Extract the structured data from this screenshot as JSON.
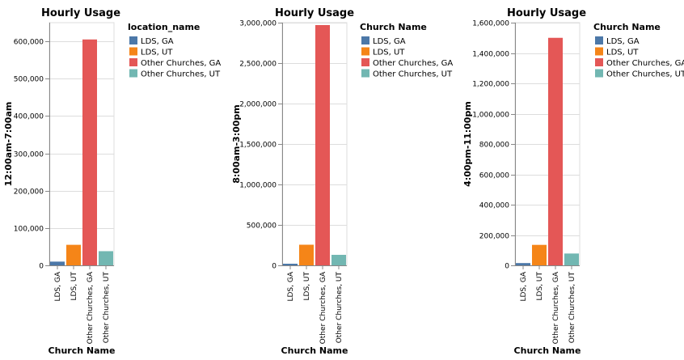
{
  "chart_data": [
    {
      "type": "bar",
      "title": "Hourly Usage",
      "xlabel": "Church Name",
      "ylabel": "12:00am-7:00am",
      "categories": [
        "LDS, GA",
        "LDS, UT",
        "Other Churches, GA",
        "Other Churches, UT"
      ],
      "values": [
        10000,
        55000,
        605000,
        38000
      ],
      "ylim": [
        0,
        650000
      ],
      "yticks": [
        0,
        100000,
        200000,
        300000,
        400000,
        500000,
        600000
      ],
      "ytick_labels": [
        "0",
        "100,000",
        "200,000",
        "300,000",
        "400,000",
        "500,000",
        "600,000"
      ],
      "legend_title": "location_name",
      "legend_placement": "right",
      "grid": true
    },
    {
      "type": "bar",
      "title": "Hourly Usage",
      "xlabel": "Church Name",
      "ylabel": "8:00am-3:00pm",
      "categories": [
        "LDS, GA",
        "LDS, UT",
        "Other Churches, GA",
        "Other Churches, UT"
      ],
      "values": [
        20000,
        255000,
        2970000,
        130000
      ],
      "ylim": [
        0,
        3000000
      ],
      "yticks": [
        0,
        500000,
        1000000,
        1500000,
        2000000,
        2500000,
        3000000
      ],
      "ytick_labels": [
        "0",
        "500,000",
        "1,000,000",
        "1,500,000",
        "2,000,000",
        "2,500,000",
        "3,000,000"
      ],
      "legend_title": "Church Name",
      "legend_placement": "right",
      "grid": true
    },
    {
      "type": "bar",
      "title": "Hourly Usage",
      "xlabel": "Church Name",
      "ylabel": "4:00pm-11:00pm",
      "categories": [
        "LDS, GA",
        "LDS, UT",
        "Other Churches, GA",
        "Other Churches, UT"
      ],
      "values": [
        15000,
        135000,
        1500000,
        78000
      ],
      "ylim": [
        0,
        1600000
      ],
      "yticks": [
        0,
        200000,
        400000,
        600000,
        800000,
        1000000,
        1200000,
        1400000,
        1600000
      ],
      "ytick_labels": [
        "0",
        "200,000",
        "400,000",
        "600,000",
        "800,000",
        "1,000,000",
        "1,200,000",
        "1,400,000",
        "1,600,000"
      ],
      "legend_title": "Church Name",
      "legend_placement": "right",
      "grid": true
    }
  ],
  "colors": {
    "LDS, GA": "#4c78a8",
    "LDS, UT": "#f58518",
    "Other Churches, GA": "#e45756",
    "Other Churches, UT": "#72b7b2"
  }
}
